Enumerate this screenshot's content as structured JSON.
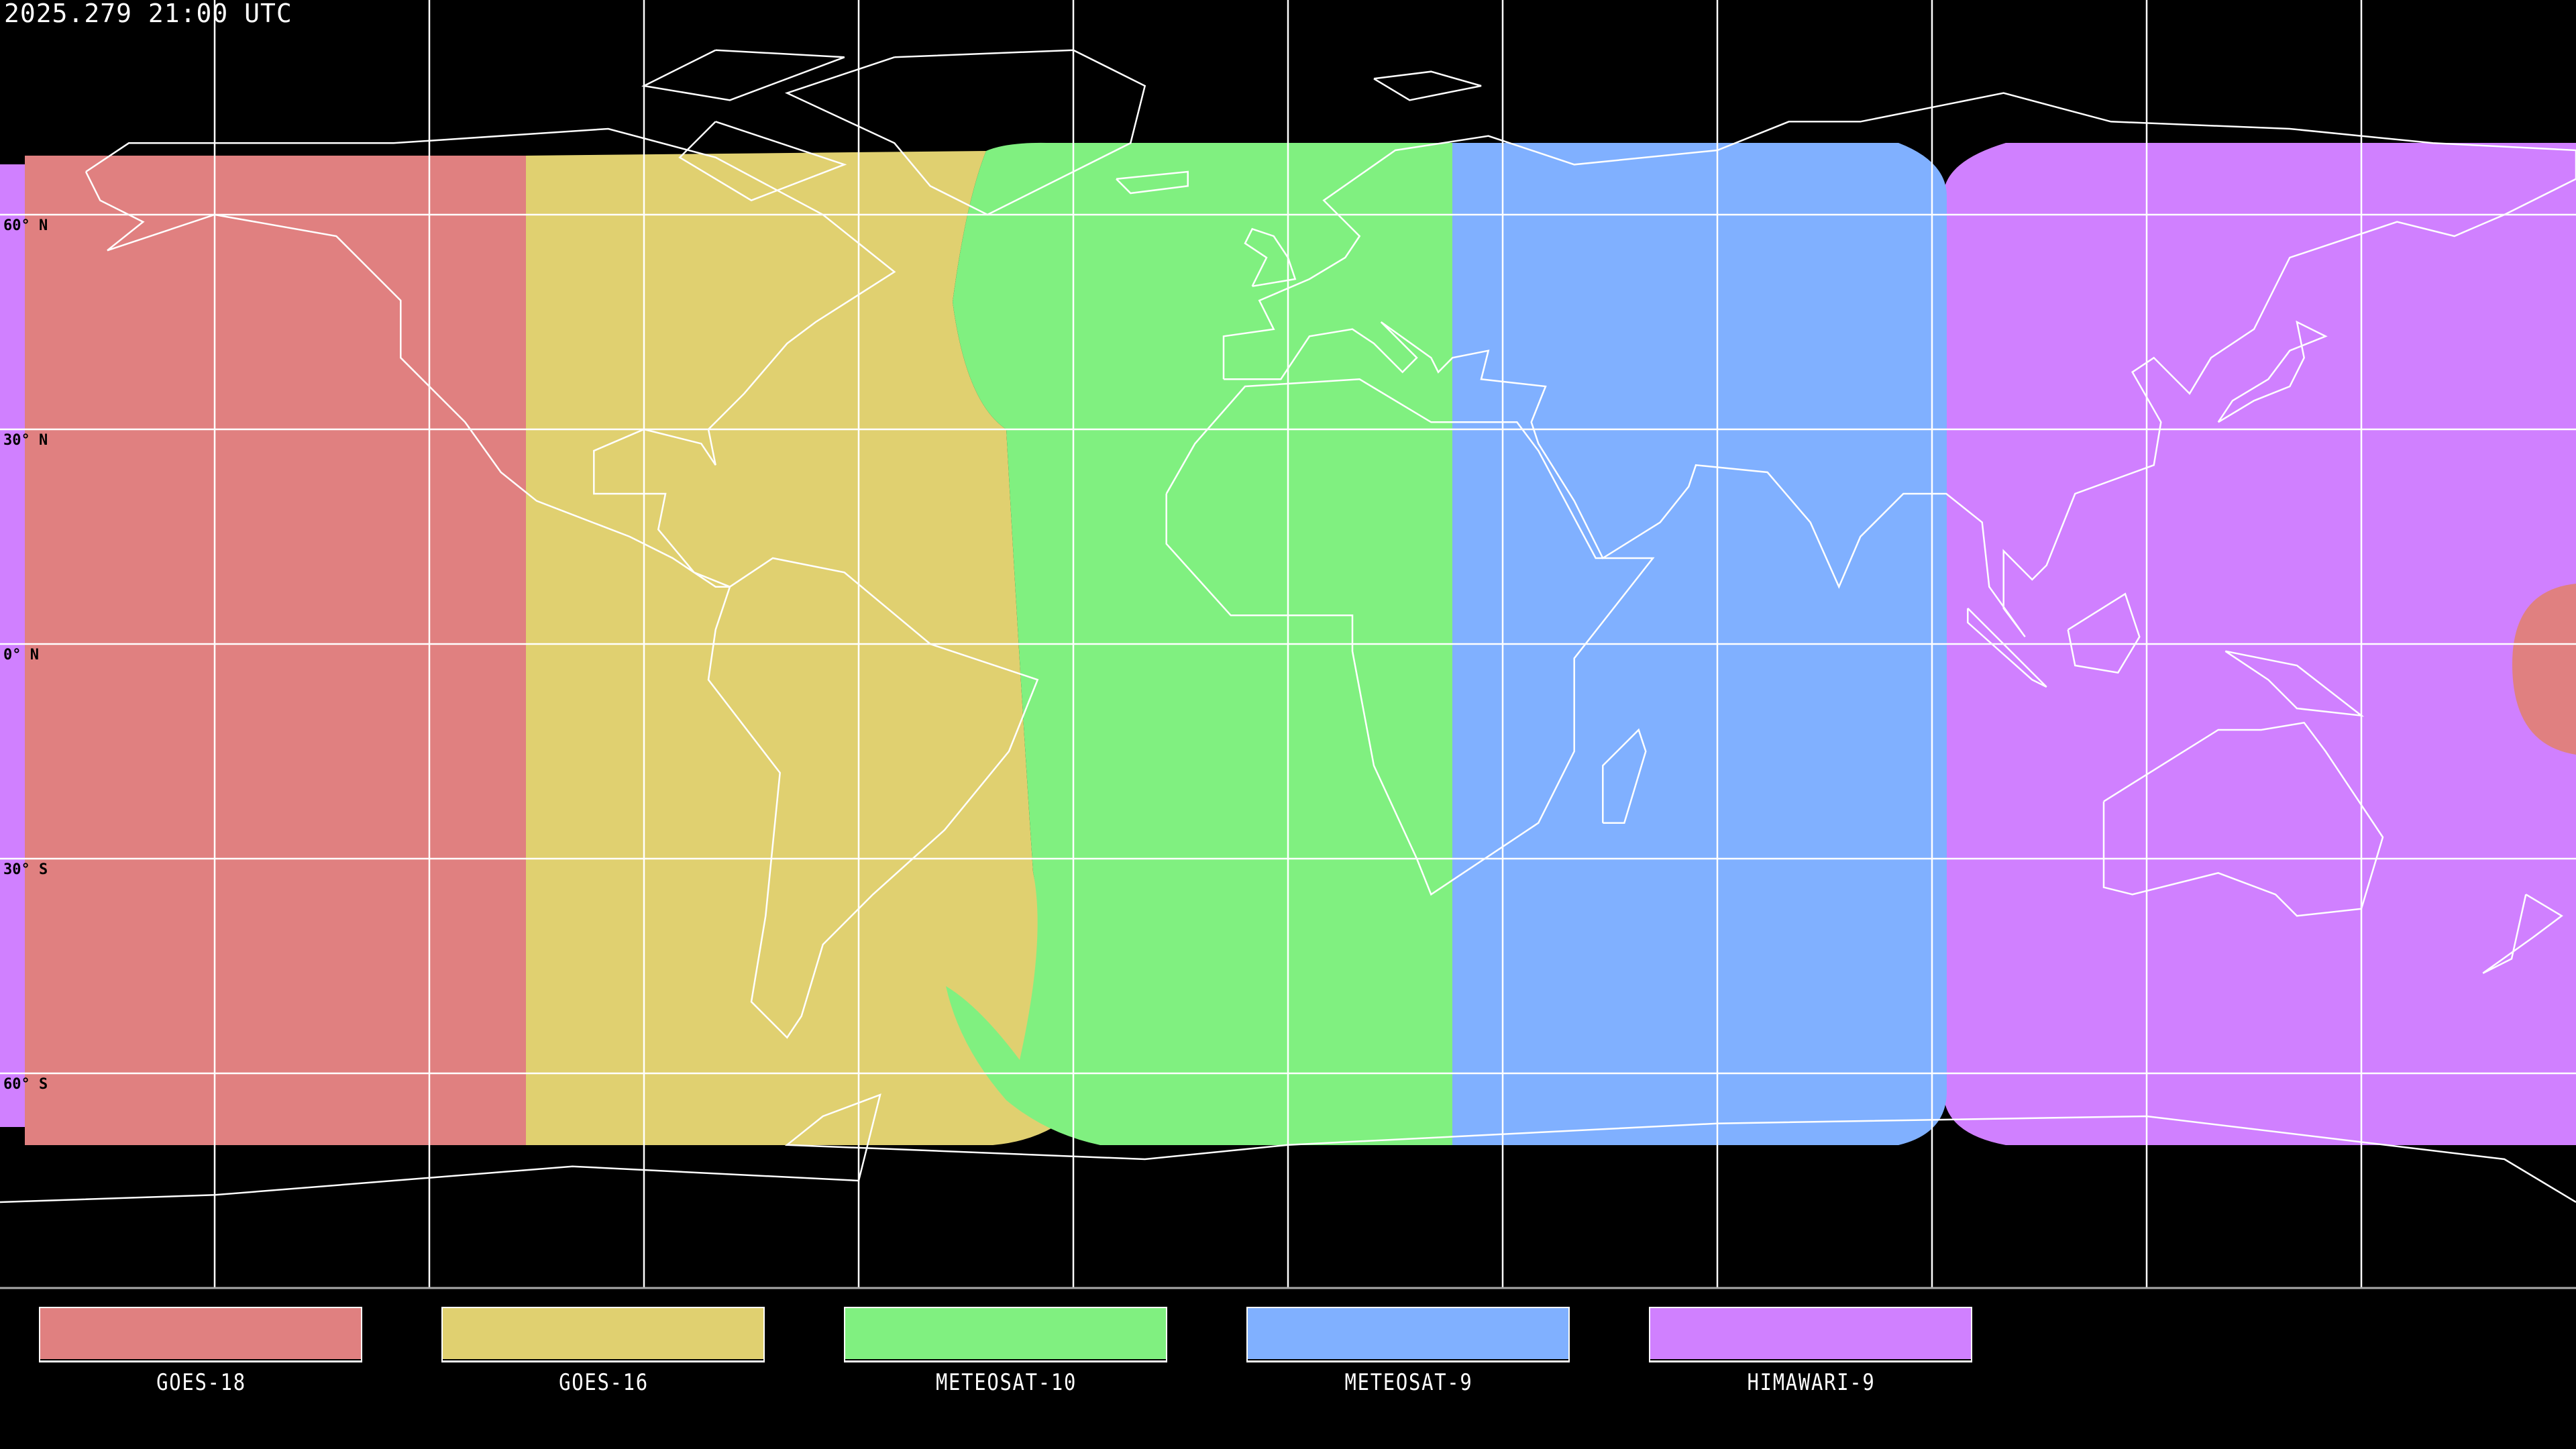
{
  "title": "2025.279 21:00 UTC",
  "projection": "equirectangular",
  "grid": {
    "lon_step_deg": 30,
    "lat_step_deg": 30,
    "color": "#000000"
  },
  "lat_labels": [
    "60° N",
    "30° N",
    "0° N",
    "30° S",
    "60° S"
  ],
  "satellites": [
    {
      "name": "GOES-18",
      "color": "#e08080"
    },
    {
      "name": "GOES-16",
      "color": "#e0d070"
    },
    {
      "name": "METEOSAT-10",
      "color": "#80f080"
    },
    {
      "name": "METEOSAT-9",
      "color": "#80b0ff"
    },
    {
      "name": "HIMAWARI-9",
      "color": "#d080ff"
    }
  ]
}
